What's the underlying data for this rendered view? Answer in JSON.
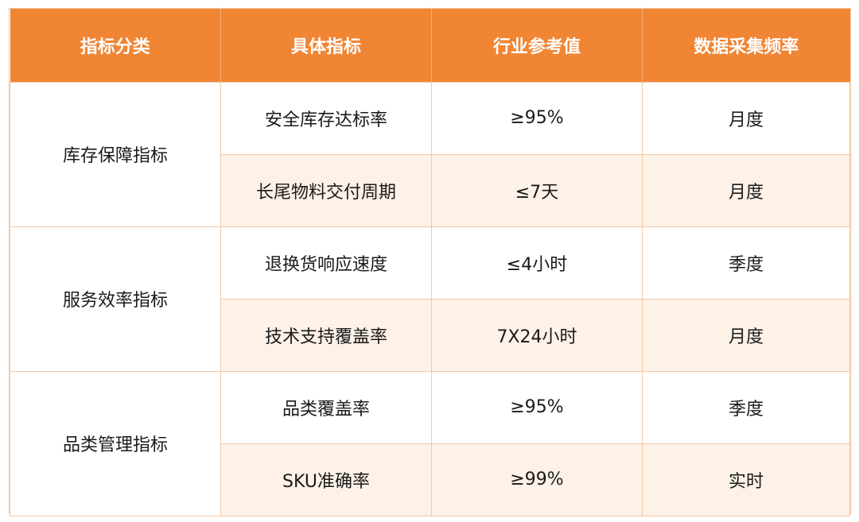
{
  "headers": [
    "指标分类",
    "具体指标",
    "行业参考值",
    "数据采集频率"
  ],
  "groups": [
    {
      "category": "库存保障指标",
      "rows": [
        {
          "metric": "安全库存达标率",
          "reference": "≥95%",
          "frequency": "月度"
        },
        {
          "metric": "长尾物料交付周期",
          "reference": "≤7天",
          "frequency": "月度"
        }
      ]
    },
    {
      "category": "服务效率指标",
      "rows": [
        {
          "metric": "退换货响应速度",
          "reference": "≤4小时",
          "frequency": "季度"
        },
        {
          "metric": "技术支持覆盖率",
          "reference": "7X24小时",
          "frequency": "月度"
        }
      ]
    },
    {
      "category": "品类管理指标",
      "rows": [
        {
          "metric": "品类覆盖率",
          "reference": "≥95%",
          "frequency": "季度"
        },
        {
          "metric": "SKU准确率",
          "reference": "≥99%",
          "frequency": "实时"
        }
      ]
    }
  ],
  "colors": {
    "header_bg": "#f08534",
    "header_text": "#ffffff",
    "alt_row_bg": "#fdf1e8",
    "border": "#f0c9a6"
  }
}
